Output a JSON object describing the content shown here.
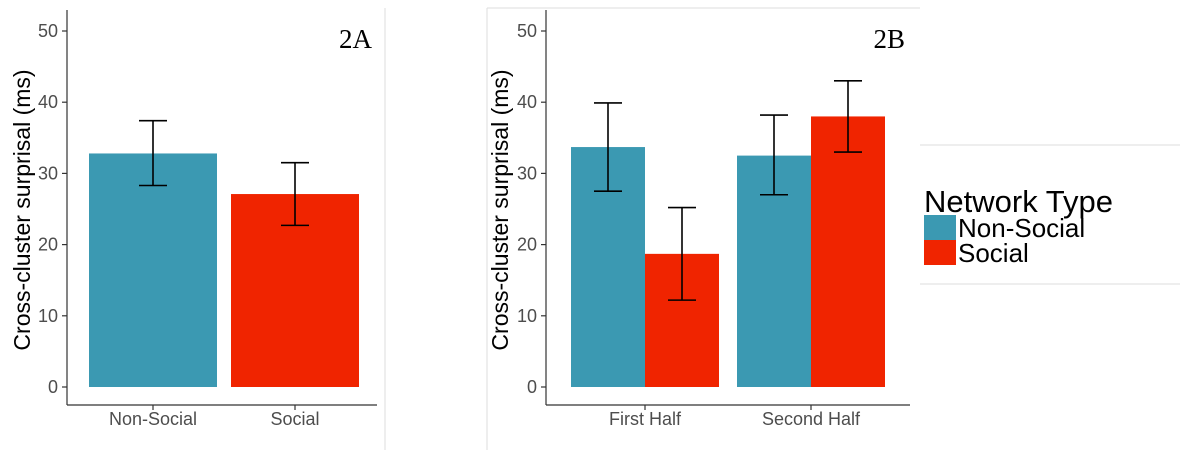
{
  "chart_data": [
    {
      "type": "bar",
      "panel_label": "2A",
      "ylabel": "Cross-cluster surprisal (ms)",
      "categories": [
        "Non-Social",
        "Social"
      ],
      "series": [
        {
          "name": "Non-Social",
          "values": [
            32.8,
            null
          ],
          "error_low": [
            28.3,
            null
          ],
          "error_high": [
            37.4,
            null
          ]
        },
        {
          "name": "Social",
          "values": [
            null,
            27.1
          ],
          "error_low": [
            null,
            22.7
          ],
          "error_high": [
            null,
            31.5
          ]
        }
      ],
      "ylim": [
        0,
        50
      ],
      "yticks": [
        0,
        10,
        20,
        30,
        40,
        50
      ],
      "grid": false
    },
    {
      "type": "bar",
      "panel_label": "2B",
      "ylabel": "Cross-cluster surprisal (ms)",
      "categories": [
        "First Half",
        "Second Half"
      ],
      "series": [
        {
          "name": "Non-Social",
          "values": [
            33.7,
            32.5
          ],
          "error_low": [
            27.5,
            27.0
          ],
          "error_high": [
            39.9,
            38.2
          ]
        },
        {
          "name": "Social",
          "values": [
            18.7,
            38.0
          ],
          "error_low": [
            12.2,
            33.0
          ],
          "error_high": [
            25.2,
            43.0
          ]
        }
      ],
      "ylim": [
        0,
        50
      ],
      "yticks": [
        0,
        10,
        20,
        30,
        40,
        50
      ],
      "grid": false
    }
  ],
  "legend": {
    "title": "Network Type",
    "placement": "right",
    "items": [
      {
        "label": "Non-Social",
        "color": "#3b99b2"
      },
      {
        "label": "Social",
        "color": "#f02400"
      }
    ]
  },
  "colors": {
    "Non-Social": "#3b99b2",
    "Social": "#f02400"
  }
}
